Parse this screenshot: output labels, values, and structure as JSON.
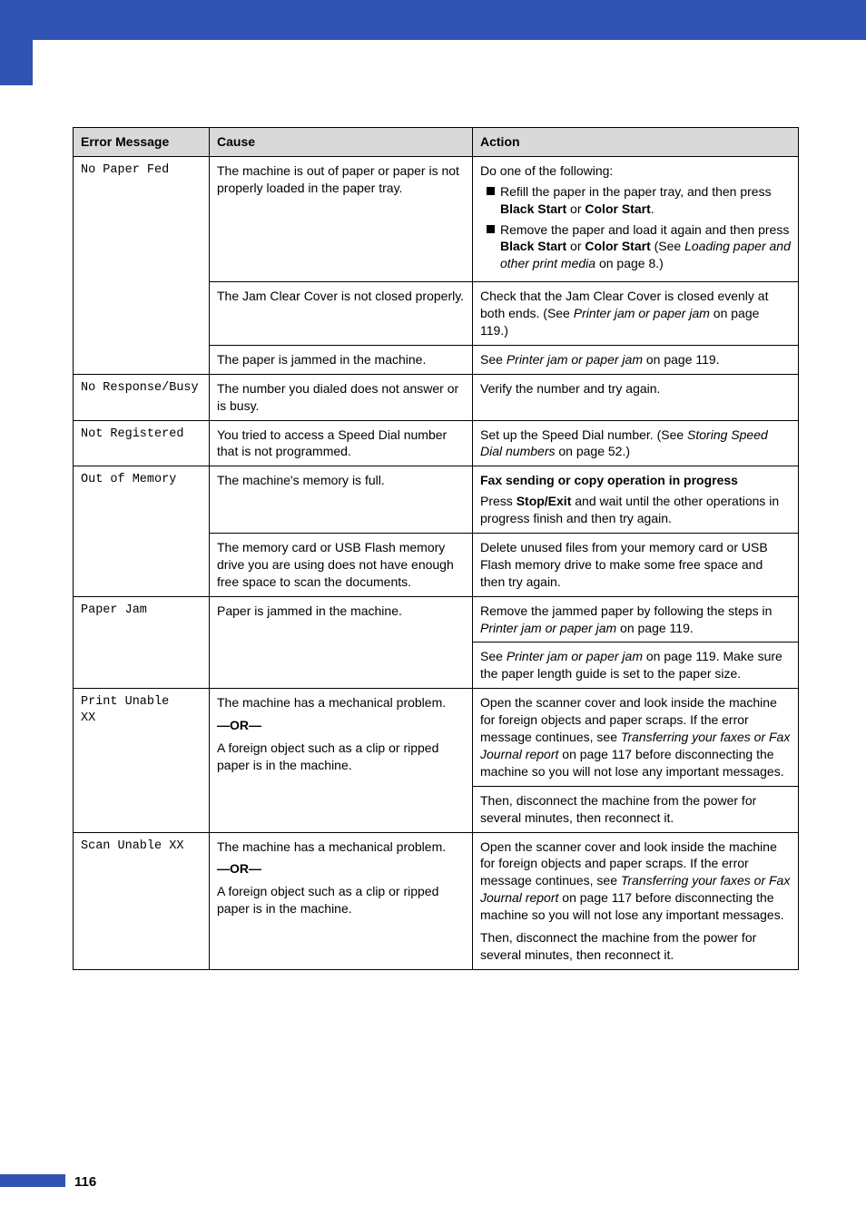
{
  "brand_color": "#2f52b3",
  "page_number": "116",
  "headers": {
    "error_message": "Error Message",
    "cause": "Cause",
    "action": "Action"
  },
  "rows": {
    "no_paper_fed": {
      "msg": "No Paper Fed",
      "cause1_html": "The machine is out of paper or paper is not properly loaded in the paper tray.",
      "action1_intro": "Do one of the following:",
      "action1_b1_html": "Refill the paper in the paper tray, and then press <b>Black Start</b> or <b>Color Start</b>.",
      "action1_b2_html": "Remove the paper and load it again and then press <b>Black Start</b> or <b>Color Start</b> (See <i>Loading paper and other print media</i> on page 8.)",
      "cause2": "The Jam Clear Cover is not closed properly.",
      "action2_html": "Check that the Jam Clear Cover is closed evenly at both ends. (See <i>Printer jam or paper jam</i> on page 119.)",
      "cause3": "The paper is jammed in the machine.",
      "action3_html": "See <i>Printer jam or paper jam</i> on page 119."
    },
    "no_response": {
      "msg": "No Response/Busy",
      "cause": "The number you dialed does not answer or is busy.",
      "action": "Verify the number and try again."
    },
    "not_registered": {
      "msg": "Not Registered",
      "cause": "You tried to access a Speed Dial number that is not programmed.",
      "action_html": "Set up the Speed Dial number. (See <i>Storing Speed Dial numbers</i> on page 52.)"
    },
    "out_of_memory": {
      "msg": "Out of Memory",
      "cause1": "The machine's memory is full.",
      "action1a_html": "<b>Fax sending or copy operation in progress</b>",
      "action1b_html": "Press <b>Stop/Exit</b> and wait until the other operations in progress finish and then try again.",
      "cause2": "The memory card or USB Flash memory drive you are using does not have enough free space to scan the documents.",
      "action2": "Delete unused files from your memory card or USB Flash memory drive to make some free space and then try again."
    },
    "paper_jam": {
      "msg": "Paper Jam",
      "cause": "Paper is jammed in the machine.",
      "action1_html": "Remove the jammed paper by following the steps in <i>Printer jam or paper jam</i> on page 119.",
      "action2_html": "See <i>Printer jam or paper jam</i> on page 119. Make sure the paper length guide is set to the paper size."
    },
    "print_unable": {
      "msg": "Print Unable XX",
      "cause_l1": "The machine has a mechanical problem.",
      "or": "—OR—",
      "cause_l2": "A foreign object such as a clip or ripped paper is in the machine.",
      "action1_html": "Open the scanner cover and look inside the machine for foreign objects and paper scraps. If the error message continues, see <i>Transferring your faxes or Fax Journal report</i> on page 117 before disconnecting the machine so you will not lose any important messages.",
      "action2": "Then, disconnect the machine from the power for several minutes, then reconnect it."
    },
    "scan_unable": {
      "msg": "Scan Unable XX",
      "cause_l1": "The machine has a mechanical problem.",
      "or": "—OR—",
      "cause_l2": "A foreign object such as a clip or ripped paper is in the machine.",
      "action1_html": "Open the scanner cover and look inside the machine for foreign objects and paper scraps. If the error message continues, see <i>Transferring your faxes or Fax Journal report</i> on page 117 before disconnecting the machine so you will not lose any important messages.",
      "action2": "Then, disconnect the machine from the power for several minutes, then reconnect it."
    }
  }
}
